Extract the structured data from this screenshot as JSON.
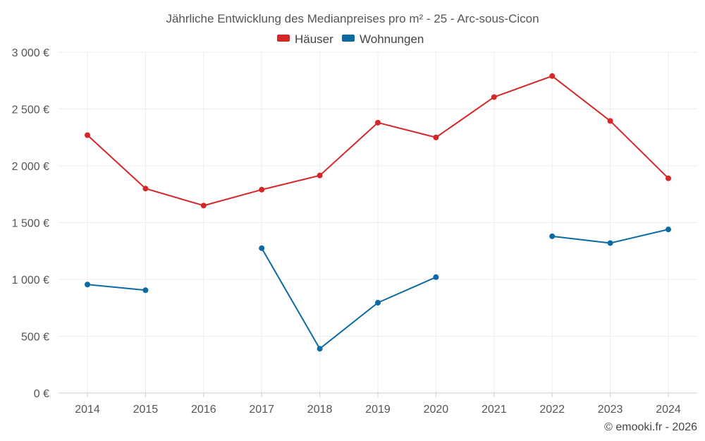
{
  "chart_data": {
    "type": "line",
    "title": "Jährliche Entwicklung des Medianpreises pro m² - 25 - Arc-sous-Cicon",
    "categories": [
      "2014",
      "2015",
      "2016",
      "2017",
      "2018",
      "2019",
      "2020",
      "2021",
      "2022",
      "2023",
      "2024"
    ],
    "ylim": [
      0,
      3000
    ],
    "yticks": [
      0,
      500,
      1000,
      1500,
      2000,
      2500,
      3000
    ],
    "ytick_labels": [
      "0 €",
      "500 €",
      "1 000 €",
      "1 500 €",
      "2 000 €",
      "2 500 €",
      "3 000 €"
    ],
    "grid": true,
    "legend_position": "top-center",
    "series": [
      {
        "name": "Häuser",
        "color": "#d62728",
        "values": [
          2270,
          1800,
          1650,
          1790,
          1915,
          2380,
          2250,
          2605,
          2790,
          2395,
          1890
        ]
      },
      {
        "name": "Wohnungen",
        "color": "#0b6aa2",
        "values": [
          955,
          905,
          null,
          1275,
          390,
          795,
          1020,
          null,
          1380,
          1320,
          1440
        ]
      }
    ]
  },
  "credit": "© emooki.fr - 2026"
}
